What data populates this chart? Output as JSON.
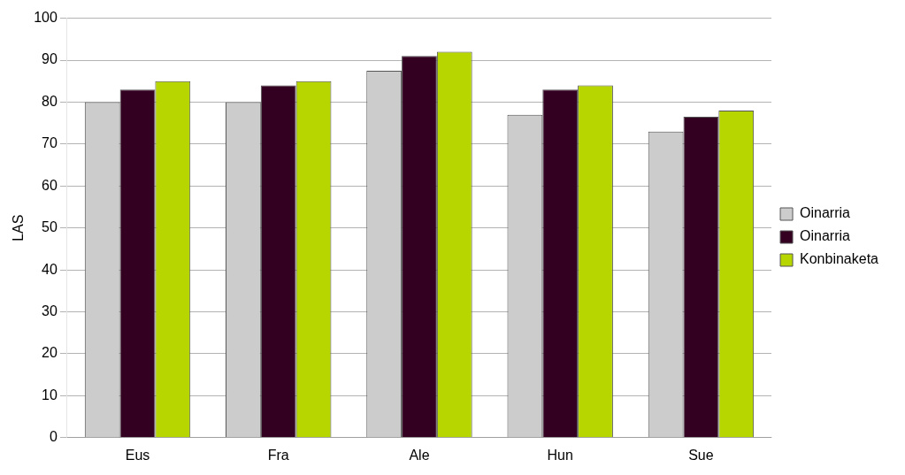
{
  "chart_data": {
    "type": "bar",
    "ylabel": "LAS",
    "categories": [
      "Eus",
      "Fra",
      "Ale",
      "Hun",
      "Sue"
    ],
    "series": [
      {
        "name": "Oinarria",
        "color": "#cccccc",
        "values": [
          80,
          80,
          87.5,
          77,
          73
        ]
      },
      {
        "name": "Oinarria",
        "color": "#330022",
        "values": [
          83,
          84,
          91,
          83,
          76.5
        ]
      },
      {
        "name": "Konbinaketa",
        "color": "#b7d600",
        "values": [
          85,
          85,
          92,
          84,
          78
        ]
      }
    ],
    "ylim": [
      0,
      100
    ],
    "yticks": [
      0,
      10,
      20,
      30,
      40,
      50,
      60,
      70,
      80,
      90,
      100
    ],
    "grid": "y",
    "legend": "right"
  }
}
